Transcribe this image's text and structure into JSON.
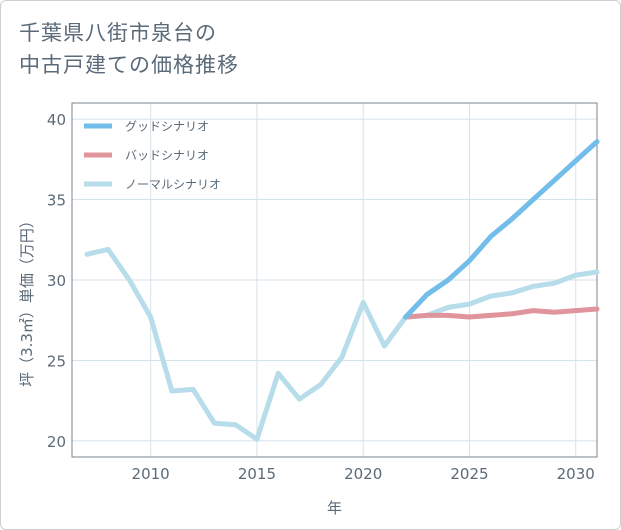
{
  "title": {
    "line1": "千葉県八街市泉台の",
    "line2": "中古戸建ての価格推移"
  },
  "chart_data": {
    "type": "line",
    "xlabel": "年",
    "ylabel": "坪（3.3㎡）単価（万円）",
    "xlim": [
      2006.3,
      2031.0
    ],
    "ylim": [
      19.0,
      41.0
    ],
    "xticks": [
      2010,
      2015,
      2020,
      2025,
      2030
    ],
    "yticks": [
      20,
      25,
      30,
      35,
      40
    ],
    "grid": true,
    "legend_position": "top-left",
    "series": [
      {
        "name": "グッドシナリオ",
        "color": "#72bde9",
        "x": [
          2022,
          2023,
          2024,
          2025,
          2026,
          2027,
          2028,
          2029,
          2030,
          2031
        ],
        "y": [
          27.7,
          29.1,
          30.0,
          31.2,
          32.7,
          33.8,
          35.0,
          36.2,
          37.4,
          38.6
        ]
      },
      {
        "name": "バッドシナリオ",
        "color": "#e0949c",
        "x": [
          2022,
          2023,
          2024,
          2025,
          2026,
          2027,
          2028,
          2029,
          2030,
          2031
        ],
        "y": [
          27.7,
          27.8,
          27.8,
          27.7,
          27.8,
          27.9,
          28.1,
          28.0,
          28.1,
          28.2
        ]
      },
      {
        "name": "ノーマルシナリオ",
        "color": "#b7dcea",
        "x": [
          2007,
          2008,
          2009,
          2010,
          2011,
          2012,
          2013,
          2014,
          2015,
          2016,
          2017,
          2018,
          2019,
          2020,
          2021,
          2022,
          2023,
          2024,
          2025,
          2026,
          2027,
          2028,
          2029,
          2030,
          2031
        ],
        "y": [
          31.6,
          31.9,
          30.0,
          27.7,
          23.1,
          23.2,
          21.1,
          21.0,
          20.1,
          24.2,
          22.6,
          23.5,
          25.2,
          28.6,
          25.9,
          27.7,
          27.8,
          28.3,
          28.5,
          29.0,
          29.2,
          29.6,
          29.8,
          30.3,
          30.5
        ]
      }
    ]
  }
}
